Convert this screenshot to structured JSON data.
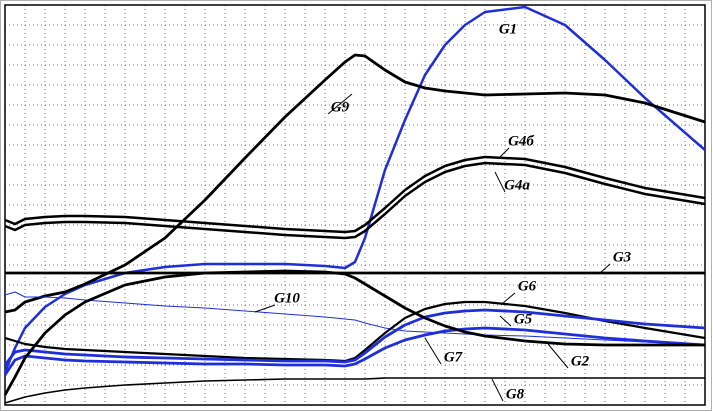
{
  "chart_data": {
    "type": "line",
    "x": [
      0,
      0.5,
      1,
      2,
      3,
      4,
      6,
      8,
      10,
      12,
      14,
      16,
      17,
      17.5,
      18,
      19,
      20,
      21,
      22,
      23,
      24,
      26,
      28,
      30,
      32,
      35
    ],
    "xlim": [
      0,
      35
    ],
    "ylim": [
      0,
      20
    ],
    "xticks": [
      0,
      1,
      2,
      3,
      4,
      5,
      6,
      7,
      8,
      9,
      10,
      11,
      12,
      13,
      14,
      15,
      16,
      17,
      18,
      19,
      20,
      21,
      22,
      23,
      24,
      25,
      26,
      27,
      28,
      29,
      30,
      31,
      32,
      33,
      34,
      35
    ],
    "yticks": [
      0,
      1,
      2,
      3,
      4,
      5,
      6,
      7,
      8,
      9,
      10,
      11,
      12,
      13,
      14,
      15,
      16,
      17,
      18,
      19,
      20
    ],
    "grid": true,
    "series": [
      {
        "name": "G1",
        "color": "#1f2fd8",
        "values": [
          1.65,
          2.85,
          3.85,
          4.9,
          5.55,
          6,
          6.6,
          6.9,
          7.05,
          7.05,
          7.05,
          6.95,
          6.85,
          7.15,
          8.35,
          11.75,
          14.25,
          16.5,
          18,
          19,
          19.65,
          19.9,
          19,
          17.25,
          15.35,
          12.75
        ]
      },
      {
        "name": "G9",
        "color": "#000000",
        "values": [
          4.65,
          4.75,
          5.15,
          5.45,
          5.65,
          6.05,
          7,
          8.35,
          10.25,
          12.35,
          14.4,
          16.25,
          17.15,
          17.5,
          17.45,
          16.75,
          16.15,
          15.85,
          15.7,
          15.6,
          15.5,
          15.55,
          15.6,
          15.5,
          15.1,
          14.15
        ]
      },
      {
        "name": "G4б",
        "color": "#000000",
        "values": [
          9.25,
          9.05,
          9.3,
          9.4,
          9.45,
          9.45,
          9.4,
          9.25,
          9.1,
          8.95,
          8.8,
          8.7,
          8.65,
          8.7,
          9,
          9.85,
          10.75,
          11.45,
          11.95,
          12.25,
          12.4,
          12.3,
          11.9,
          11.35,
          10.85,
          10.35
        ]
      },
      {
        "name": "G4a",
        "color": "#000000",
        "values": [
          8.95,
          8.75,
          9,
          9.1,
          9.15,
          9.15,
          9.1,
          8.95,
          8.8,
          8.65,
          8.5,
          8.4,
          8.35,
          8.4,
          8.7,
          9.55,
          10.45,
          11.15,
          11.65,
          11.95,
          12.1,
          12,
          11.6,
          11.05,
          10.55,
          10.05
        ]
      },
      {
        "name": "G3",
        "color": "#000000",
        "values": [
          6.6,
          6.6,
          6.6,
          6.6,
          6.6,
          6.6,
          6.6,
          6.6,
          6.6,
          6.6,
          6.6,
          6.6,
          6.6,
          6.6,
          6.6,
          6.6,
          6.6,
          6.6,
          6.6,
          6.6,
          6.6,
          6.6,
          6.6,
          6.6,
          6.6,
          6.6
        ]
      },
      {
        "name": "G10",
        "color": "#1f2fd8",
        "values": [
          5.5,
          5.65,
          5.4,
          5.4,
          5.35,
          5.25,
          5.1,
          4.95,
          4.85,
          4.7,
          4.55,
          4.4,
          4.3,
          4.25,
          4.1,
          3.85,
          3.7,
          3.65,
          3.6,
          3.55,
          3.5,
          3.45,
          3.35,
          3.25,
          3.15,
          3
        ]
      },
      {
        "name": "G6",
        "color": "#000000",
        "values": [
          3.35,
          3.2,
          3.05,
          2.9,
          2.8,
          2.75,
          2.65,
          2.55,
          2.45,
          2.35,
          2.3,
          2.25,
          2.2,
          2.35,
          2.75,
          3.6,
          4.35,
          4.8,
          5.05,
          5.15,
          5.15,
          4.95,
          4.6,
          4.2,
          3.85,
          3.35
        ]
      },
      {
        "name": "G5",
        "color": "#1f2fd8",
        "values": [
          2,
          2.65,
          2.75,
          2.65,
          2.55,
          2.5,
          2.4,
          2.35,
          2.3,
          2.25,
          2.2,
          2.2,
          2.15,
          2.25,
          2.6,
          3.4,
          4,
          4.4,
          4.6,
          4.7,
          4.75,
          4.65,
          4.45,
          4.25,
          4.05,
          3.85
        ]
      },
      {
        "name": "G7",
        "color": "#1f2fd8",
        "values": [
          1.5,
          2.25,
          2.45,
          2.35,
          2.25,
          2.2,
          2.15,
          2.1,
          2.05,
          2.05,
          2,
          2,
          1.95,
          2.05,
          2.3,
          2.85,
          3.25,
          3.5,
          3.7,
          3.8,
          3.85,
          3.75,
          3.55,
          3.35,
          3.2,
          3
        ]
      },
      {
        "name": "G2",
        "color": "#000000",
        "values": [
          0.5,
          1.4,
          2.35,
          3.6,
          4.5,
          5.15,
          6,
          6.4,
          6.6,
          6.65,
          6.7,
          6.65,
          6.55,
          6.35,
          6.05,
          5.45,
          4.85,
          4.35,
          3.95,
          3.65,
          3.45,
          3.2,
          3.05,
          3,
          3,
          3
        ]
      },
      {
        "name": "G8",
        "color": "#000000",
        "values": [
          0.1,
          0.25,
          0.4,
          0.6,
          0.75,
          0.85,
          1,
          1.1,
          1.2,
          1.25,
          1.3,
          1.3,
          1.3,
          1.3,
          1.3,
          1.35,
          1.35,
          1.35,
          1.35,
          1.35,
          1.35,
          1.35,
          1.35,
          1.35,
          1.35,
          1.35
        ]
      }
    ]
  }
}
